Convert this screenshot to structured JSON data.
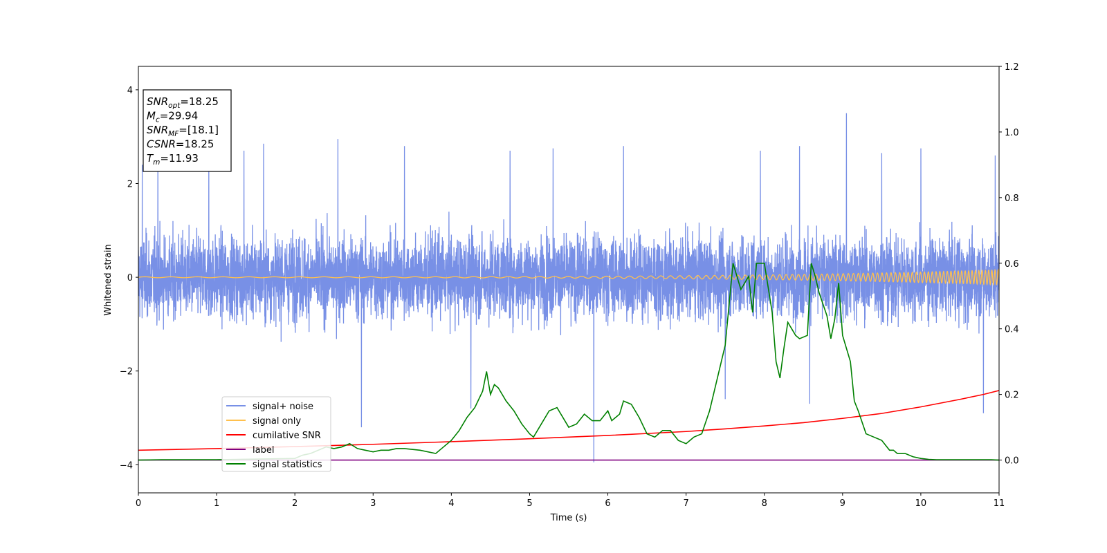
{
  "chart_data": {
    "type": "line",
    "xlabel": "Time (s)",
    "ylabel": "Whitened strain",
    "xlim": [
      0,
      11
    ],
    "ylim_left": [
      -4.6,
      4.5
    ],
    "ylim_right": [
      -0.1,
      1.2
    ],
    "xticks": [
      0,
      1,
      2,
      3,
      4,
      5,
      6,
      7,
      8,
      9,
      10,
      11
    ],
    "yticks_left": [
      -4,
      -2,
      0,
      2,
      4
    ],
    "yticks_right": [
      0.0,
      0.2,
      0.4,
      0.6,
      0.8,
      1.0,
      1.2
    ],
    "grid": false,
    "legend_location": "lower-left",
    "stats_box": [
      {
        "sym": "SNR",
        "sub": "opt",
        "text": "=18.25"
      },
      {
        "sym": "M",
        "sub": "c",
        "text": "=29.94"
      },
      {
        "sym": "SNR",
        "sub": "MF",
        "text": "=[18.1]"
      },
      {
        "sym": "CSNR",
        "sub": "",
        "text": "=18.25"
      },
      {
        "sym": "T",
        "sub": "m",
        "text": "=11.93"
      }
    ],
    "series": [
      {
        "name": "signal+ noise",
        "color": "#7890e6",
        "axis": "left",
        "style": "noise",
        "envelope_typical": 1.6,
        "spikes": [
          {
            "x": 0.05,
            "y": 2.4
          },
          {
            "x": 0.25,
            "y": 2.7
          },
          {
            "x": 0.9,
            "y": 2.8
          },
          {
            "x": 1.35,
            "y": 2.7
          },
          {
            "x": 1.6,
            "y": 2.85
          },
          {
            "x": 2.55,
            "y": 2.95
          },
          {
            "x": 2.85,
            "y": -3.2
          },
          {
            "x": 3.4,
            "y": 2.8
          },
          {
            "x": 4.25,
            "y": -2.8
          },
          {
            "x": 4.75,
            "y": 2.7
          },
          {
            "x": 5.3,
            "y": 2.75
          },
          {
            "x": 5.82,
            "y": -3.95
          },
          {
            "x": 6.2,
            "y": 2.8
          },
          {
            "x": 7.5,
            "y": -2.6
          },
          {
            "x": 7.95,
            "y": 2.7
          },
          {
            "x": 8.45,
            "y": 2.8
          },
          {
            "x": 8.58,
            "y": -2.7
          },
          {
            "x": 9.05,
            "y": 3.5
          },
          {
            "x": 9.5,
            "y": 2.65
          },
          {
            "x": 10.0,
            "y": 2.75
          },
          {
            "x": 10.8,
            "y": -2.9
          },
          {
            "x": 10.95,
            "y": 2.6
          }
        ]
      },
      {
        "name": "signal only",
        "color": "#ffc04d",
        "axis": "left",
        "style": "chirp",
        "amplitude_start": 0.01,
        "amplitude_end": 0.16
      },
      {
        "name": "cumilative SNR",
        "color": "#ff0000",
        "axis": "right",
        "x": [
          0,
          1,
          2,
          3,
          4,
          5,
          6,
          7,
          7.5,
          8,
          8.5,
          9,
          9.5,
          10,
          10.5,
          10.8,
          11
        ],
        "y": [
          0.03,
          0.035,
          0.041,
          0.048,
          0.056,
          0.065,
          0.075,
          0.087,
          0.095,
          0.104,
          0.114,
          0.127,
          0.142,
          0.162,
          0.185,
          0.2,
          0.212
        ]
      },
      {
        "name": "label",
        "color": "#800080",
        "axis": "right",
        "x": [
          0,
          11
        ],
        "y": [
          0.0,
          0.0
        ]
      },
      {
        "name": "signal statistics",
        "color": "#008000",
        "axis": "right",
        "x": [
          0,
          0.3,
          1.0,
          2.0,
          2.1,
          2.2,
          2.3,
          2.4,
          2.5,
          2.6,
          2.7,
          2.8,
          2.9,
          3.0,
          3.1,
          3.2,
          3.3,
          3.4,
          3.6,
          3.8,
          3.9,
          4.0,
          4.1,
          4.2,
          4.3,
          4.4,
          4.45,
          4.5,
          4.55,
          4.6,
          4.7,
          4.8,
          4.9,
          5.0,
          5.05,
          5.15,
          5.25,
          5.35,
          5.45,
          5.5,
          5.6,
          5.7,
          5.8,
          5.9,
          6.0,
          6.05,
          6.15,
          6.2,
          6.3,
          6.4,
          6.5,
          6.6,
          6.7,
          6.8,
          6.9,
          7.0,
          7.1,
          7.2,
          7.3,
          7.4,
          7.5,
          7.6,
          7.7,
          7.8,
          7.85,
          7.9,
          8.0,
          8.1,
          8.15,
          8.2,
          8.25,
          8.3,
          8.4,
          8.45,
          8.55,
          8.6,
          8.65,
          8.7,
          8.8,
          8.85,
          8.9,
          8.95,
          9.0,
          9.1,
          9.15,
          9.2,
          9.3,
          9.4,
          9.5,
          9.6,
          9.65,
          9.7,
          9.8,
          9.9,
          10.0,
          10.1,
          10.2,
          10.3,
          10.4,
          10.5,
          10.6,
          10.7,
          10.8,
          10.9,
          11.0
        ],
        "y": [
          0.0,
          0.001,
          0.001,
          0.005,
          0.015,
          0.02,
          0.03,
          0.04,
          0.035,
          0.04,
          0.05,
          0.035,
          0.03,
          0.025,
          0.03,
          0.03,
          0.035,
          0.035,
          0.03,
          0.02,
          0.04,
          0.06,
          0.09,
          0.13,
          0.16,
          0.21,
          0.27,
          0.2,
          0.23,
          0.22,
          0.18,
          0.15,
          0.11,
          0.08,
          0.07,
          0.11,
          0.15,
          0.16,
          0.12,
          0.1,
          0.11,
          0.14,
          0.12,
          0.12,
          0.15,
          0.12,
          0.14,
          0.18,
          0.17,
          0.13,
          0.08,
          0.07,
          0.09,
          0.09,
          0.06,
          0.05,
          0.07,
          0.08,
          0.15,
          0.25,
          0.35,
          0.6,
          0.52,
          0.56,
          0.45,
          0.6,
          0.6,
          0.45,
          0.3,
          0.25,
          0.34,
          0.42,
          0.38,
          0.37,
          0.38,
          0.6,
          0.56,
          0.51,
          0.44,
          0.37,
          0.43,
          0.54,
          0.38,
          0.3,
          0.18,
          0.15,
          0.08,
          0.07,
          0.06,
          0.03,
          0.03,
          0.02,
          0.02,
          0.01,
          0.005,
          0.002,
          0.001,
          0.001,
          0.001,
          0.001,
          0.001,
          0.001,
          0.001,
          0.001,
          0.0
        ]
      }
    ]
  }
}
